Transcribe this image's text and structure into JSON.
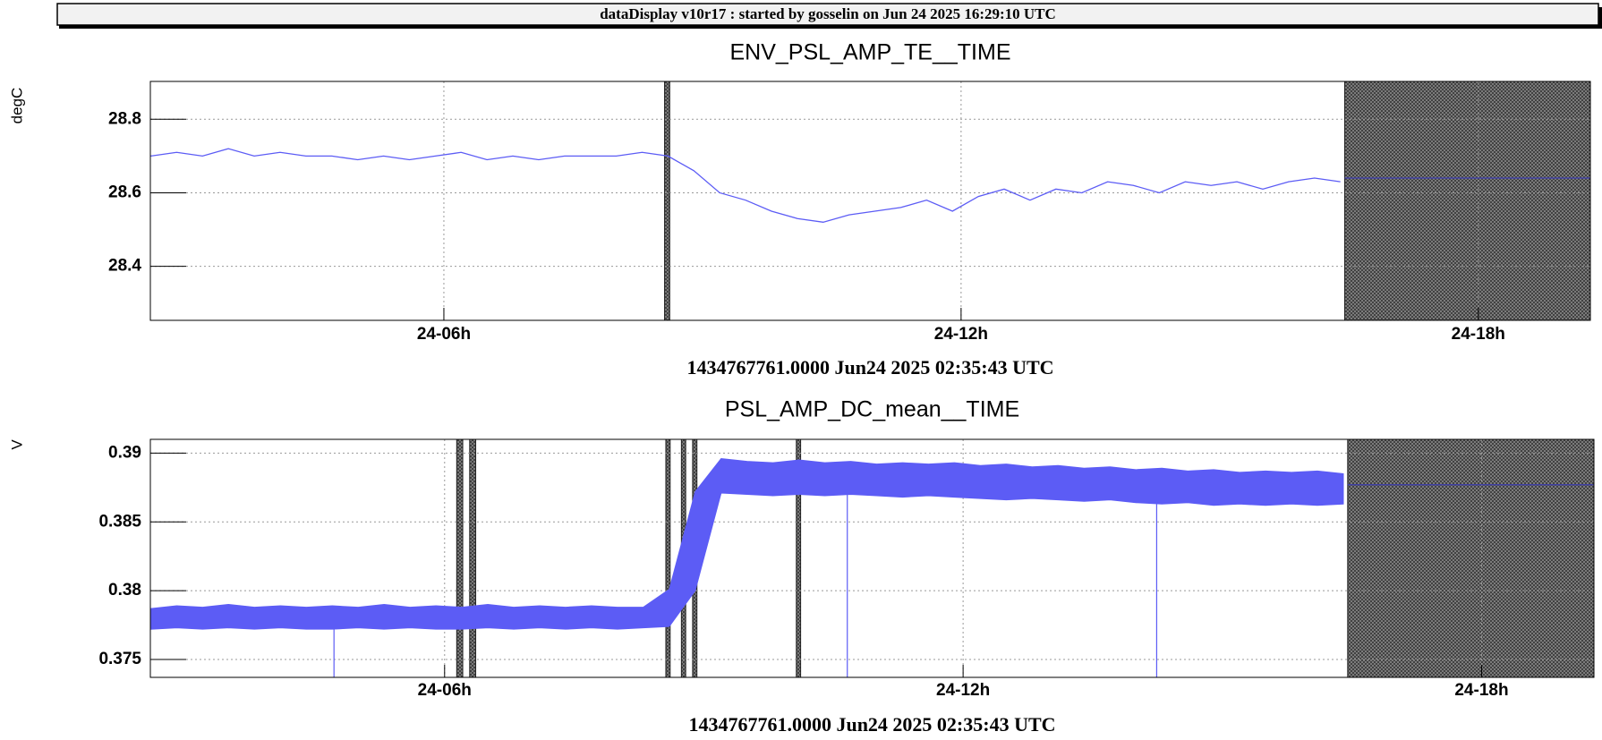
{
  "header": {
    "title": "dataDisplay v10r17 : started by gosselin on Jun 24 2025 16:29:10 UTC"
  },
  "chart_data": [
    {
      "type": "line",
      "title": "ENV_PSL_AMP_TE__TIME",
      "ylabel": "degC",
      "xlabel": "1434767761.0000 Jun24 2025 02:35:43 UTC",
      "color": "#5c5cf5",
      "grid": true,
      "xlim": [
        2.595,
        19.3
      ],
      "xticks": [
        {
          "value": 6,
          "label": "24-06h"
        },
        {
          "value": 12,
          "label": "24-12h"
        },
        {
          "value": 18,
          "label": "24-18h"
        }
      ],
      "ylim": [
        28.253,
        28.903
      ],
      "yticks": [
        28.4,
        28.6,
        28.8
      ],
      "x": [
        2.6,
        2.9,
        3.2,
        3.5,
        3.8,
        4.1,
        4.4,
        4.7,
        5.0,
        5.3,
        5.6,
        5.9,
        6.2,
        6.5,
        6.8,
        7.1,
        7.4,
        7.7,
        8.0,
        8.3,
        8.6,
        8.9,
        9.2,
        9.5,
        9.8,
        10.1,
        10.4,
        10.7,
        11.0,
        11.3,
        11.6,
        11.9,
        12.2,
        12.5,
        12.8,
        13.1,
        13.4,
        13.7,
        14.0,
        14.3,
        14.6,
        14.9,
        15.2,
        15.5,
        15.8,
        16.1,
        16.4
      ],
      "values": [
        28.7,
        28.71,
        28.7,
        28.72,
        28.7,
        28.71,
        28.7,
        28.7,
        28.69,
        28.7,
        28.69,
        28.7,
        28.71,
        28.69,
        28.7,
        28.69,
        28.7,
        28.7,
        28.7,
        28.71,
        28.7,
        28.66,
        28.6,
        28.58,
        28.55,
        28.53,
        28.52,
        28.54,
        28.55,
        28.56,
        28.58,
        28.55,
        28.59,
        28.61,
        28.58,
        28.61,
        28.6,
        28.63,
        28.62,
        28.6,
        28.63,
        28.62,
        28.63,
        28.61,
        28.63,
        28.64,
        28.63
      ],
      "hold": {
        "color": "#3b3bb0",
        "x": [
          16.45,
          19.3
        ],
        "values": [
          28.64,
          28.64
        ]
      },
      "masked": [
        [
          8.56,
          8.62
        ],
        [
          16.45,
          19.3
        ]
      ]
    },
    {
      "type": "line",
      "title": "PSL_AMP_DC_mean__TIME",
      "ylabel": "V",
      "xlabel": "1434767761.0000 Jun24 2025 02:35:43 UTC",
      "color": "#5c5cf5",
      "grid": true,
      "xlim": [
        2.595,
        19.3
      ],
      "xticks": [
        {
          "value": 6,
          "label": "24-06h"
        },
        {
          "value": 12,
          "label": "24-12h"
        },
        {
          "value": 18,
          "label": "24-18h"
        }
      ],
      "ylim": [
        0.3737,
        0.391
      ],
      "yticks": [
        0.39,
        0.385,
        0.38,
        0.375
      ],
      "x": [
        2.6,
        2.9,
        3.2,
        3.5,
        3.8,
        4.1,
        4.4,
        4.7,
        5.0,
        5.3,
        5.6,
        5.9,
        6.2,
        6.5,
        6.8,
        7.1,
        7.4,
        7.7,
        8.0,
        8.3,
        8.6,
        8.9,
        9.2,
        9.5,
        9.8,
        10.1,
        10.4,
        10.7,
        11.0,
        11.3,
        11.6,
        11.9,
        12.2,
        12.5,
        12.8,
        13.1,
        13.4,
        13.7,
        14.0,
        14.3,
        14.6,
        14.9,
        15.2,
        15.5,
        15.8,
        16.1,
        16.4
      ],
      "low": [
        0.3772,
        0.3773,
        0.3772,
        0.3773,
        0.3772,
        0.3773,
        0.3772,
        0.3772,
        0.3773,
        0.3772,
        0.3773,
        0.3772,
        0.3772,
        0.3773,
        0.3772,
        0.3773,
        0.3772,
        0.3773,
        0.3772,
        0.3773,
        0.3774,
        0.38,
        0.3871,
        0.387,
        0.3869,
        0.387,
        0.3869,
        0.387,
        0.3869,
        0.3868,
        0.3869,
        0.3868,
        0.3867,
        0.3866,
        0.3867,
        0.3866,
        0.3865,
        0.3866,
        0.3864,
        0.3863,
        0.3864,
        0.3862,
        0.3863,
        0.3862,
        0.3863,
        0.3862,
        0.3863
      ],
      "high": [
        0.3787,
        0.3789,
        0.3788,
        0.379,
        0.3788,
        0.3789,
        0.3788,
        0.3789,
        0.3788,
        0.379,
        0.3788,
        0.3789,
        0.3788,
        0.379,
        0.3788,
        0.3789,
        0.3788,
        0.3789,
        0.3788,
        0.3788,
        0.3801,
        0.3872,
        0.3896,
        0.3894,
        0.3893,
        0.3895,
        0.3893,
        0.3894,
        0.3892,
        0.3893,
        0.3892,
        0.3893,
        0.3891,
        0.3892,
        0.389,
        0.3891,
        0.3889,
        0.389,
        0.3888,
        0.3889,
        0.3887,
        0.3888,
        0.3886,
        0.3887,
        0.3886,
        0.3887,
        0.3885
      ],
      "dips": {
        "x": [
          4.72,
          10.66,
          14.24
        ],
        "values": [
          0.3737,
          0.3737,
          0.3737
        ]
      },
      "hold": {
        "color": "#3b3bb0",
        "x": [
          16.45,
          19.3
        ],
        "values": [
          0.3877,
          0.3877
        ]
      },
      "masked": [
        [
          6.14,
          6.21
        ],
        [
          6.29,
          6.36
        ],
        [
          8.56,
          8.61
        ],
        [
          8.74,
          8.79
        ],
        [
          8.87,
          8.92
        ],
        [
          10.07,
          10.12
        ],
        [
          16.45,
          19.3
        ]
      ]
    }
  ]
}
